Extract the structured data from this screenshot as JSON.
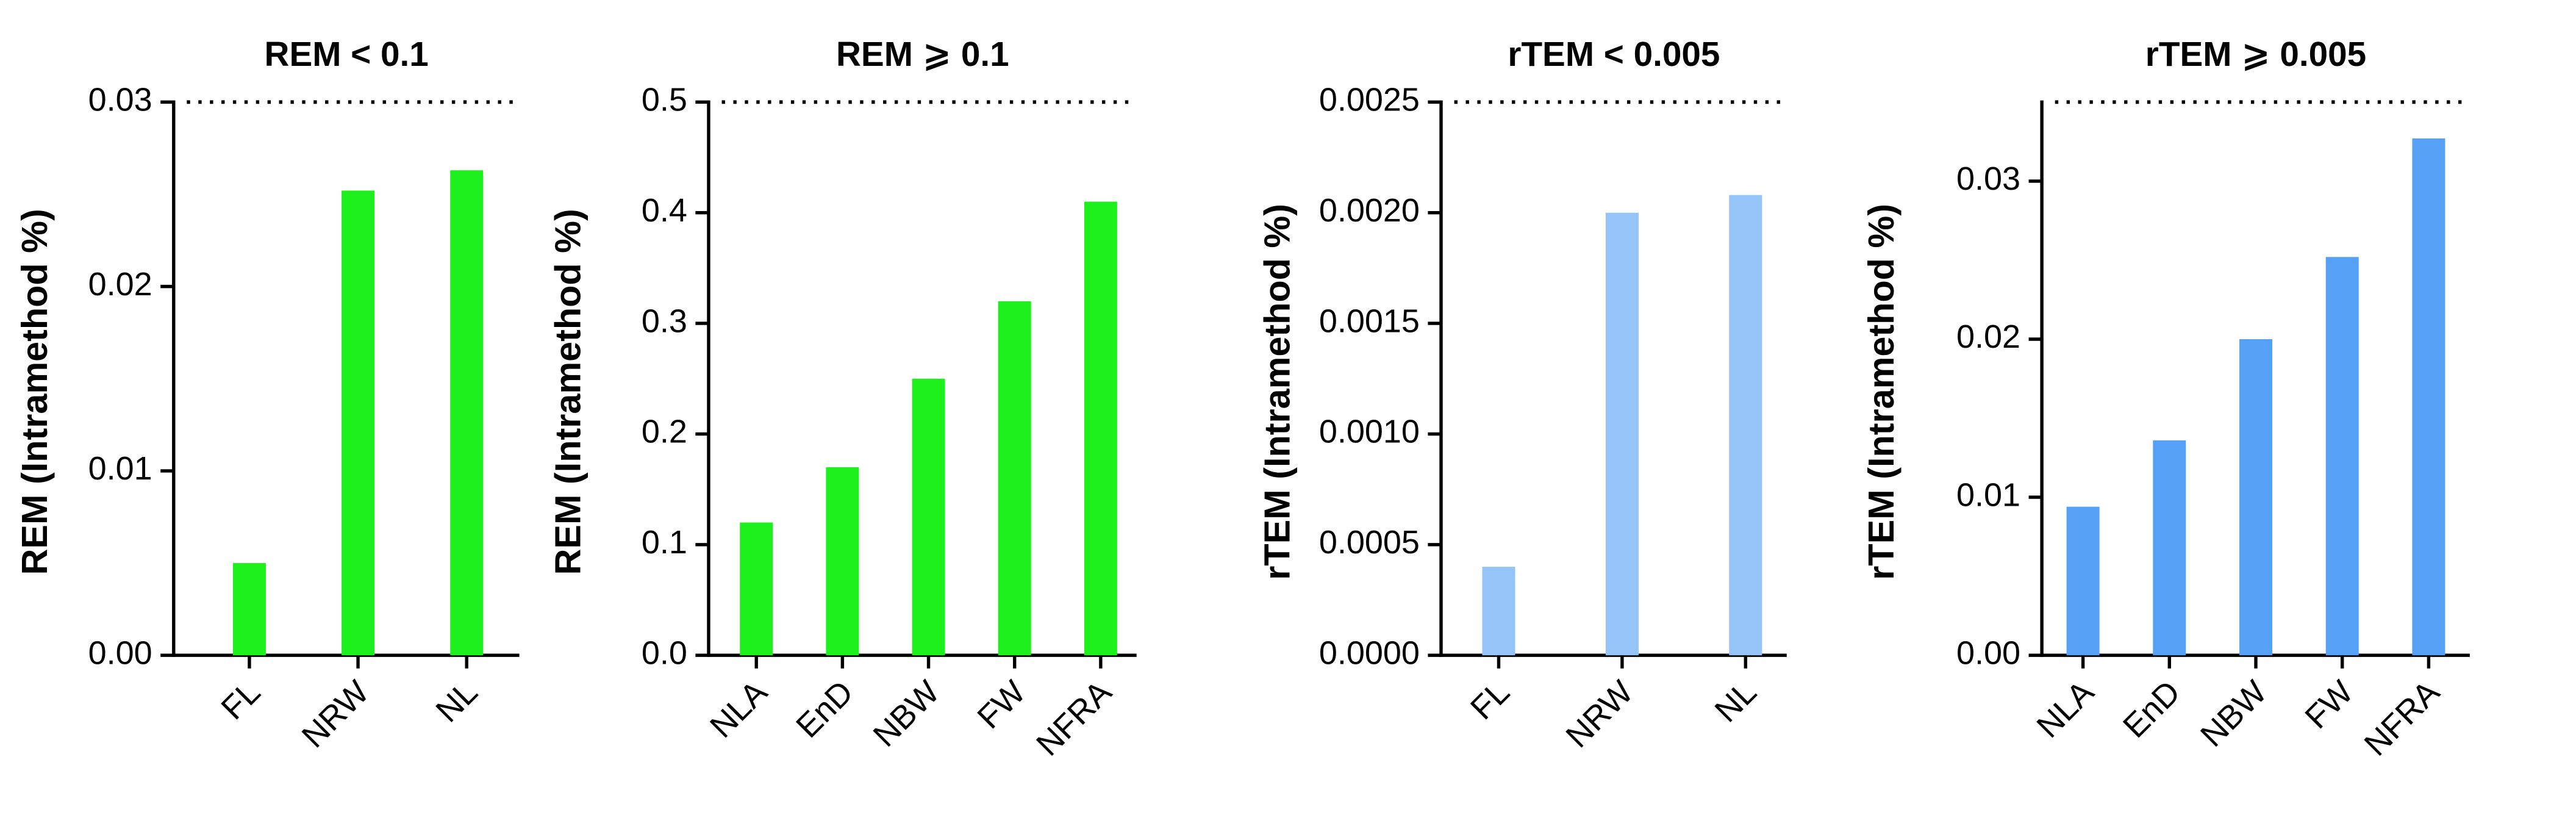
{
  "chart_data": [
    {
      "type": "bar",
      "title": "REM < 0.1",
      "y_label": "REM (Intramethod %)",
      "categories": [
        "FL",
        "NRW",
        "NL"
      ],
      "values": [
        0.005,
        0.0252,
        0.0263
      ],
      "color": "#1ef01e",
      "ylim": [
        0,
        0.03
      ],
      "yticks": [
        {
          "value": 0,
          "label": "0.00"
        },
        0.01,
        0.02,
        0.03
      ]
    },
    {
      "type": "bar",
      "title": "REM ⩾ 0.1",
      "y_label": "REM (Intramethod %)",
      "categories": [
        "NLA",
        "EnD",
        "NBW",
        "FW",
        "NFRA"
      ],
      "values": [
        0.12,
        0.17,
        0.25,
        0.32,
        0.41
      ],
      "color": "#1ef01e",
      "ylim": [
        0,
        0.5
      ],
      "yticks": [
        {
          "value": 0,
          "label": "0.0"
        },
        0.1,
        0.2,
        0.3,
        0.4,
        0.5
      ]
    },
    {
      "type": "bar",
      "title": "rTEM < 0.005",
      "y_label": "rTEM (Intramethod %)",
      "categories": [
        "FL",
        "NRW",
        "NL"
      ],
      "values": [
        0.0004,
        0.002,
        0.00208
      ],
      "color": "#94c4f8",
      "ylim": [
        0,
        0.0025
      ],
      "yticks": [
        {
          "value": 0,
          "label": "0.0000"
        },
        0.0005,
        {
          "value": 0.001,
          "label": "0.0010"
        },
        0.0015,
        {
          "value": 0.002,
          "label": "0.0020"
        },
        0.0025
      ]
    },
    {
      "type": "bar",
      "title": "rTEM ⩾ 0.005",
      "y_label": "rTEM (Intramethod %)",
      "categories": [
        "NLA",
        "EnD",
        "NBW",
        "FW",
        "NFRA"
      ],
      "values": [
        0.0094,
        0.0136,
        0.02,
        0.0252,
        0.0327
      ],
      "color": "#56a0f5",
      "ylim": [
        0,
        0.035
      ],
      "yticks": [
        {
          "value": 0,
          "label": "0.00"
        },
        0.01,
        0.02,
        0.03
      ]
    }
  ]
}
